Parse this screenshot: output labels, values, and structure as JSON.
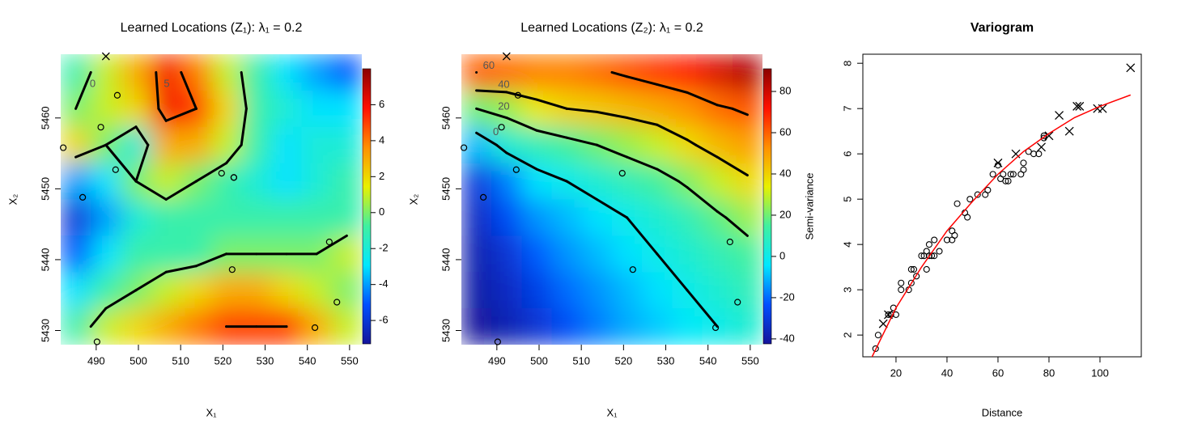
{
  "chart_data": [
    {
      "type": "heatmap",
      "title": "Learned Locations (Z₁): λ₁ = 0.2",
      "x_label": "X₁",
      "y_label": "X₂",
      "xlim": [
        481.6,
        552.9
      ],
      "ylim": [
        5428,
        5469
      ],
      "xticks": [
        490,
        500,
        510,
        520,
        530,
        540,
        550
      ],
      "yticks": [
        5430,
        5440,
        5450,
        5460
      ],
      "zlim": [
        -7.3,
        8
      ],
      "zticks": [
        -6,
        -4,
        -2,
        0,
        2,
        4,
        6
      ],
      "colors": [
        "#14149a",
        "#0050ff",
        "#00e8ff",
        "#40f0a0",
        "#e8f000",
        "#ff9000",
        "#ff1000",
        "#8b0000"
      ],
      "contour_levels": [
        0,
        5
      ],
      "contour_color": "#000000",
      "z": [
        [
          -1,
          1,
          3,
          6,
          4,
          1,
          -1,
          -3,
          -4,
          -5
        ],
        [
          0,
          1,
          2,
          6,
          5,
          2,
          -1,
          -2,
          -3,
          -3
        ],
        [
          2,
          0,
          -2,
          3,
          3,
          1,
          -1,
          -3,
          -2,
          -2
        ],
        [
          -4,
          -3,
          0,
          1,
          0,
          -1,
          -2,
          -3,
          -2,
          -1
        ],
        [
          -6,
          -4,
          -2,
          -1,
          -1,
          -1,
          -1,
          -1,
          -1,
          -1
        ],
        [
          -5,
          -3,
          -1,
          -1,
          -1,
          0,
          0,
          0,
          0,
          1
        ],
        [
          -3,
          -1,
          0,
          1,
          2,
          3,
          3,
          2,
          1,
          0
        ],
        [
          -1,
          1,
          2,
          3,
          4,
          5,
          5,
          5,
          3,
          1
        ]
      ],
      "series": [
        {
          "marker": "circle",
          "x": [
            495.0,
            491.1,
            494.6,
            482.2,
            519.7,
            522.6,
            522.6,
            486.8,
            522.2,
            545.2,
            541.8,
            547.0,
            490.2
          ],
          "values": [
            5463.2,
            5458.7,
            5452.7,
            5455.8,
            5452.2,
            5451.6,
            5451.6,
            5448.8,
            5438.6,
            5442.5,
            5430.4,
            5434.0,
            5428.4
          ]
        },
        {
          "marker": "cross",
          "x": [
            492.3
          ],
          "values": [
            5468.7
          ]
        }
      ]
    },
    {
      "type": "heatmap",
      "title": "Learned Locations (Z₂): λ₁ = 0.2",
      "x_label": "X₁",
      "y_label": "X₂",
      "colorbar_label": "Semi-variance",
      "xlim": [
        481.6,
        552.9
      ],
      "ylim": [
        5428,
        5469
      ],
      "xticks": [
        490,
        500,
        510,
        520,
        530,
        540,
        550
      ],
      "yticks": [
        5430,
        5440,
        5450,
        5460
      ],
      "zlim": [
        -42.4,
        91
      ],
      "zticks": [
        -40,
        -20,
        0,
        20,
        40,
        60,
        80
      ],
      "colors": [
        "#14149a",
        "#0050ff",
        "#00e8ff",
        "#40f0a0",
        "#e8f000",
        "#ff9000",
        "#ff1000",
        "#8b0000"
      ],
      "contour_levels": [
        0,
        20,
        40,
        60
      ],
      "contour_color": "#000000",
      "z": [
        [
          60,
          58,
          55,
          55,
          58,
          62,
          66,
          70,
          78,
          85
        ],
        [
          20,
          25,
          35,
          40,
          42,
          45,
          48,
          52,
          58,
          62
        ],
        [
          -10,
          5,
          10,
          15,
          20,
          25,
          30,
          38,
          45,
          50
        ],
        [
          -30,
          -18,
          -5,
          0,
          5,
          10,
          15,
          22,
          30,
          38
        ],
        [
          -35,
          -25,
          -15,
          -10,
          -5,
          0,
          5,
          10,
          18,
          25
        ],
        [
          -38,
          -32,
          -22,
          -15,
          -10,
          -5,
          0,
          5,
          10,
          15
        ],
        [
          -40,
          -35,
          -28,
          -20,
          -15,
          -10,
          -5,
          0,
          5,
          10
        ],
        [
          -42,
          -38,
          -32,
          -25,
          -18,
          -12,
          -8,
          -3,
          0,
          5
        ]
      ],
      "series": [
        {
          "marker": "circle",
          "x": [
            495.0,
            491.1,
            494.6,
            482.2,
            519.7,
            486.8,
            522.2,
            545.2,
            541.8,
            547.0,
            490.2
          ],
          "values": [
            5463.2,
            5458.7,
            5452.7,
            5455.8,
            5452.2,
            5448.8,
            5438.6,
            5442.5,
            5430.4,
            5434.0,
            5428.4
          ]
        },
        {
          "marker": "cross",
          "x": [
            492.3
          ],
          "values": [
            5468.7
          ]
        }
      ]
    },
    {
      "type": "scatter",
      "title": "Variogram",
      "x_label": "Distance",
      "xlim": [
        7,
        116.2
      ],
      "ylim": [
        1.52,
        8.2
      ],
      "xticks": [
        20,
        40,
        60,
        80,
        100
      ],
      "yticks": [
        2,
        3,
        4,
        5,
        6,
        7,
        8
      ],
      "series": [
        {
          "marker": "circle",
          "color": "#000000",
          "x": [
            12,
            13,
            17,
            18,
            19,
            20,
            22,
            22,
            25,
            26,
            26,
            27,
            28,
            30,
            31,
            32,
            32,
            33,
            33,
            34,
            35,
            35,
            37,
            40,
            42,
            42,
            43,
            44,
            47,
            48,
            49,
            52,
            55,
            56,
            58,
            60,
            61,
            62,
            63,
            64,
            65,
            66,
            69,
            70,
            70,
            72,
            74,
            76,
            78,
            78
          ],
          "values": [
            1.7,
            2.0,
            2.45,
            2.45,
            2.6,
            2.45,
            3.0,
            3.15,
            3.0,
            3.15,
            3.45,
            3.45,
            3.3,
            3.75,
            3.75,
            3.45,
            3.85,
            4.0,
            3.75,
            3.75,
            3.75,
            4.1,
            3.85,
            4.1,
            4.1,
            4.3,
            4.2,
            4.9,
            4.7,
            4.6,
            5.0,
            5.1,
            5.1,
            5.2,
            5.55,
            5.75,
            5.45,
            5.55,
            5.4,
            5.4,
            5.55,
            5.55,
            5.55,
            5.8,
            5.65,
            6.05,
            6.0,
            6.0,
            6.35,
            6.4
          ]
        },
        {
          "marker": "cross",
          "color": "#000000",
          "x": [
            15,
            17,
            60,
            67,
            77,
            80,
            84,
            88,
            91,
            92,
            99,
            101,
            112
          ],
          "values": [
            2.25,
            2.45,
            5.8,
            6.0,
            6.15,
            6.4,
            6.85,
            6.5,
            7.05,
            7.05,
            7.0,
            7.0,
            7.9
          ]
        },
        {
          "marker": "line",
          "color": "#ff0000",
          "x": [
            10,
            20,
            30,
            40,
            50,
            60,
            70,
            80,
            90,
            100,
            112
          ],
          "values": [
            1.45,
            2.6,
            3.5,
            4.3,
            4.95,
            5.55,
            6.05,
            6.45,
            6.8,
            7.05,
            7.3
          ]
        }
      ]
    }
  ]
}
